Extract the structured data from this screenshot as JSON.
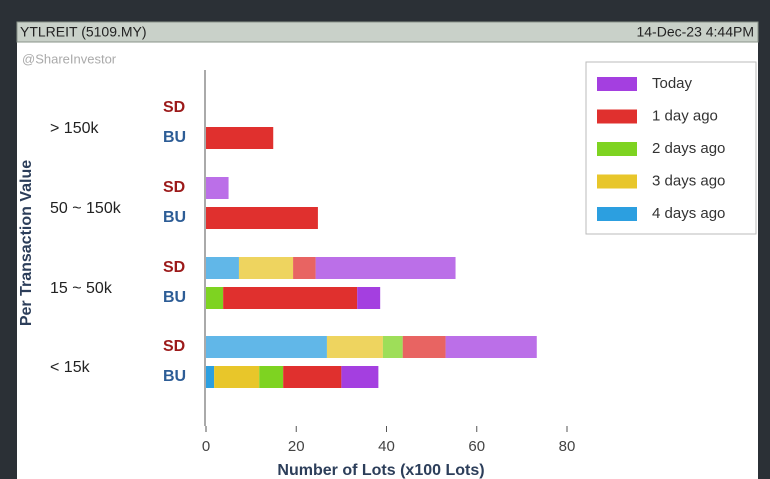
{
  "header": {
    "title": "YTLREIT (5109.MY)",
    "timestamp": "14-Dec-23 4:44PM",
    "watermark": "@ShareInvestor"
  },
  "chart_data": {
    "type": "stacked_bar_horizontal",
    "categories": [
      "> 150k",
      "50 ~ 150k",
      "15 ~ 50k",
      "< 15k"
    ],
    "row_labels": [
      "SD",
      "BU"
    ],
    "y_label": "Per Transaction Value",
    "x_label": "Number of Lots (x100 Lots)",
    "xlim": [
      0,
      80
    ],
    "xticks": [
      0,
      20,
      40,
      60,
      80
    ],
    "legend": "top-right",
    "series": [
      {
        "name": "Today",
        "color": "#a43fe0",
        "values": [
          [
            null,
            null
          ],
          [
            5,
            null
          ],
          [
            31,
            5.1
          ],
          [
            20.2,
            8.2
          ]
        ]
      },
      {
        "name": "1 day ago",
        "color": "#e0302e",
        "values": [
          [
            null,
            14.9
          ],
          [
            null,
            24.8
          ],
          [
            5,
            29.7
          ],
          [
            9.5,
            12.9
          ]
        ]
      },
      {
        "name": "2 days ago",
        "color": "#7ed321",
        "values": [
          [
            null,
            null
          ],
          [
            null,
            null
          ],
          [
            null,
            3.8
          ],
          [
            4.4,
            5.3
          ]
        ]
      },
      {
        "name": "3 days ago",
        "color": "#e8c62a",
        "values": [
          [
            null,
            null
          ],
          [
            null,
            null
          ],
          [
            12,
            null
          ],
          [
            12.4,
            10
          ]
        ]
      },
      {
        "name": "4 days ago",
        "color": "#2c9fe0",
        "values": [
          [
            null,
            null
          ],
          [
            null,
            null
          ],
          [
            7.3,
            null
          ],
          [
            26.8,
            1.8
          ]
        ]
      }
    ]
  }
}
